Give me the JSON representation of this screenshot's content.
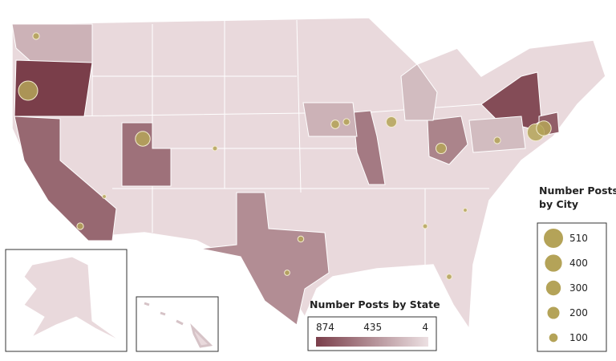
{
  "map": {
    "state_legend": {
      "title": "Number Posts by State",
      "ticks": [
        874,
        435,
        4
      ],
      "colors": [
        "#7a3e4a",
        "#ece0e2"
      ]
    },
    "city_legend": {
      "title": [
        "Number Posts",
        "by City"
      ],
      "sizes": [
        510,
        400,
        300,
        200,
        100
      ],
      "color": "#b4a358"
    },
    "state_posts": [
      250,
      874,
      650,
      600,
      450,
      550,
      500,
      800,
      250,
      200,
      200,
      700
    ],
    "city_posts": [
      510,
      60,
      300,
      150,
      100,
      60,
      150,
      400,
      300,
      60,
      50,
      40,
      40,
      30,
      60,
      30,
      20,
      20
    ]
  }
}
